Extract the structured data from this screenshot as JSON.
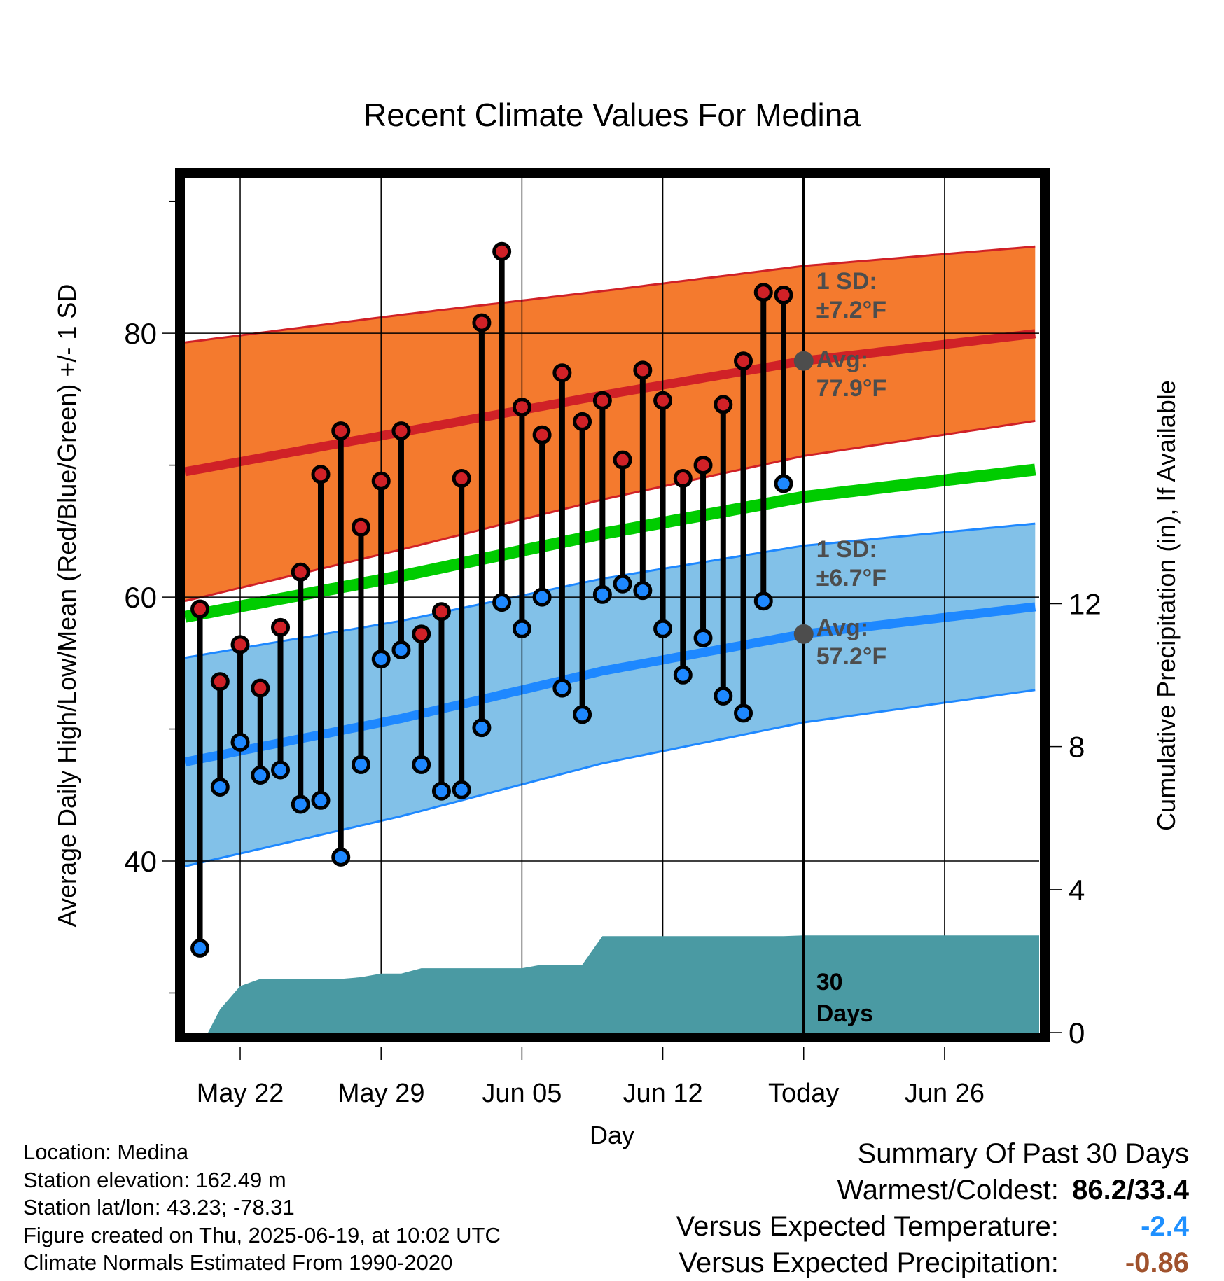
{
  "chart_data": {
    "type": "line",
    "title": "Recent Climate Values For Medina",
    "xlabel": "Day",
    "ylabel": "Average Daily High/Low/Mean (Red/Blue/Green) +/- 1 SD",
    "y2label": "Cumulative Precipitation (in), If Available",
    "ylim": [
      27,
      92
    ],
    "y2lim": [
      0,
      24
    ],
    "xlim": [
      -0.75,
      41.7
    ],
    "y_ticks": [
      40,
      60,
      80
    ],
    "y2_ticks": [
      0,
      4,
      8,
      12
    ],
    "x_ticks": [
      {
        "day": 2,
        "label": "May 22"
      },
      {
        "day": 9,
        "label": "May 29"
      },
      {
        "day": 16,
        "label": "Jun 05"
      },
      {
        "day": 23,
        "label": "Jun 12"
      },
      {
        "day": 30,
        "label": "Today"
      },
      {
        "day": 37,
        "label": "Jun 26"
      }
    ],
    "today_day": 30,
    "grid": true,
    "normals": {
      "day": [
        -0.75,
        10,
        20,
        30,
        41.7
      ],
      "high_avg": [
        69.5,
        72.5,
        75.3,
        77.9,
        80.0
      ],
      "high_sd": [
        9.8,
        8.9,
        7.9,
        7.2,
        6.6
      ],
      "low_avg": [
        47.5,
        50.8,
        54.4,
        57.2,
        59.3
      ],
      "low_sd": [
        7.9,
        7.4,
        7.0,
        6.7,
        6.3
      ],
      "mean": [
        58.5,
        61.6,
        64.8,
        67.6,
        69.7
      ]
    },
    "series": [
      {
        "name": "Daily High",
        "day": [
          0,
          1,
          2,
          3,
          4,
          5,
          6,
          7,
          8,
          9,
          10,
          11,
          12,
          13,
          14,
          15,
          16,
          17,
          18,
          19,
          20,
          21,
          22,
          23,
          24,
          25,
          26,
          27,
          28,
          29
        ],
        "values": [
          59.1,
          53.6,
          56.4,
          53.1,
          57.7,
          61.9,
          69.3,
          72.6,
          65.3,
          68.8,
          72.6,
          57.2,
          58.9,
          69.0,
          80.8,
          86.2,
          74.4,
          72.3,
          77.0,
          73.3,
          74.9,
          70.4,
          77.2,
          74.9,
          69.0,
          70.0,
          74.6,
          77.9,
          83.1,
          82.9
        ]
      },
      {
        "name": "Daily Low",
        "day": [
          0,
          1,
          2,
          3,
          4,
          5,
          6,
          7,
          8,
          9,
          10,
          11,
          12,
          13,
          14,
          15,
          16,
          17,
          18,
          19,
          20,
          21,
          22,
          23,
          24,
          25,
          26,
          27,
          28,
          29
        ],
        "values": [
          33.4,
          45.6,
          49.0,
          46.5,
          46.9,
          44.3,
          44.6,
          40.3,
          47.3,
          55.3,
          56.0,
          47.3,
          45.3,
          45.4,
          50.1,
          59.6,
          57.6,
          60.0,
          53.1,
          51.1,
          60.2,
          61.0,
          60.5,
          57.6,
          54.1,
          56.9,
          52.5,
          51.2,
          59.7,
          68.6
        ]
      }
    ],
    "precip": {
      "day": [
        0.4,
        1,
        2,
        3,
        5,
        7,
        8,
        9,
        10,
        11,
        14,
        16,
        17,
        19,
        20,
        23,
        26,
        29,
        30,
        41.7
      ],
      "values": [
        0.0,
        0.65,
        1.3,
        1.5,
        1.5,
        1.5,
        1.55,
        1.65,
        1.65,
        1.8,
        1.8,
        1.8,
        1.9,
        1.9,
        2.7,
        2.7,
        2.7,
        2.7,
        2.72,
        2.72
      ]
    },
    "annotations": {
      "high_sd_label": "1 SD:",
      "high_sd_value": "±7.2°F",
      "high_avg_label": "Avg:",
      "high_avg_value": "77.9°F",
      "high_avg_marker": 77.9,
      "low_sd_label": "1 SD:",
      "low_sd_value": "±6.7°F",
      "low_avg_label": "Avg:",
      "low_avg_value": "57.2°F",
      "low_avg_marker": 57.2,
      "days_label_1": "30",
      "days_label_2": "Days"
    },
    "colors": {
      "high_band": "#f47a2e",
      "high_line": "#d02127",
      "low_band": "#82c1e8",
      "low_line": "#1e88ff",
      "mean_line": "#00cc00",
      "precip": "#4a9aa3",
      "high_dot": "#d02127",
      "low_dot": "#1e88ff",
      "annotation_text": "#4d4d4d"
    }
  },
  "footer": {
    "location": "Location: Medina",
    "elevation": "Station elevation: 162.49 m",
    "latlon": "Station lat/lon: 43.23; -78.31",
    "created": "Figure created on Thu, 2025-06-19, at 10:02 UTC",
    "normals": "Climate Normals Estimated From 1990-2020"
  },
  "summary": {
    "title": "Summary Of Past 30 Days",
    "warmest_label": "Warmest/Coldest:",
    "warmest_value": "86.2/33.4",
    "temp_label": "Versus Expected Temperature:",
    "temp_value": "-2.4",
    "precip_label": "Versus Expected Precipitation:",
    "precip_value": "-0.86"
  }
}
